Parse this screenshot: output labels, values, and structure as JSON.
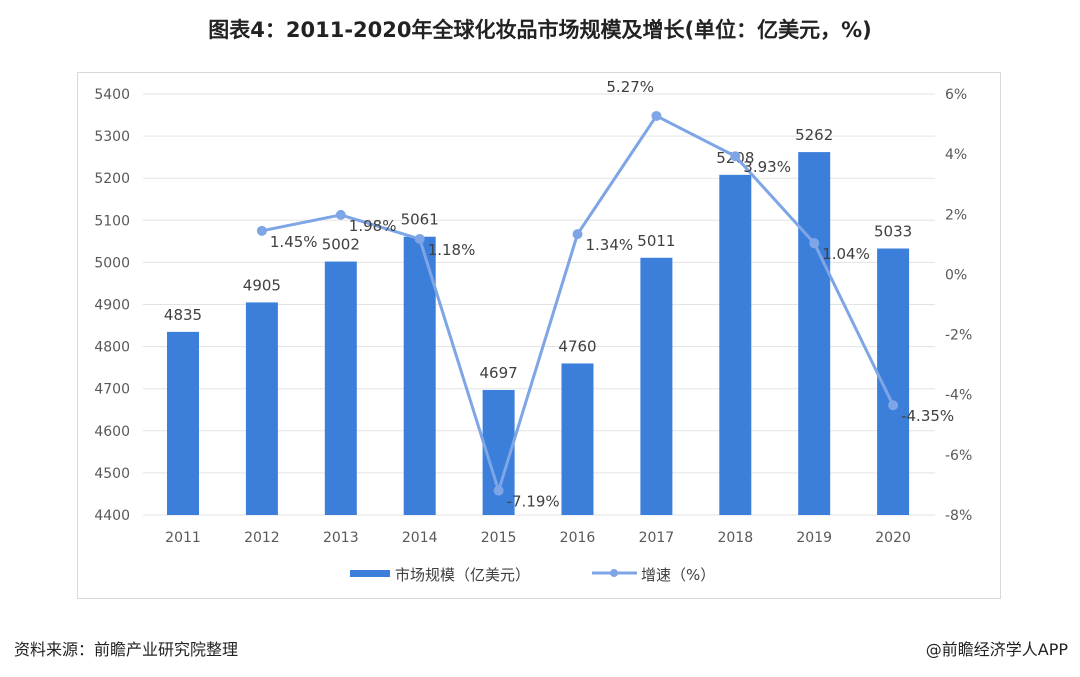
{
  "title": "图表4：2011-2020年全球化妆品市场规模及增长(单位：亿美元，%)",
  "source": "资料来源：前瞻产业研究院整理",
  "credit": "@前瞻经济学人APP",
  "chart_data": {
    "type": "bar+line",
    "title": "图表4：2011-2020年全球化妆品市场规模及增长(单位：亿美元，%)",
    "categories": [
      "2011",
      "2012",
      "2013",
      "2014",
      "2015",
      "2016",
      "2017",
      "2018",
      "2019",
      "2020"
    ],
    "series": [
      {
        "name": "市场规模（亿美元）",
        "type": "bar",
        "axis": "left",
        "color": "#3c7fdb",
        "values": [
          4835,
          4905,
          5002,
          5061,
          4697,
          4760,
          5011,
          5208,
          5262,
          5033
        ]
      },
      {
        "name": "增速（%）",
        "type": "line",
        "axis": "right",
        "color": "#7ea6e6",
        "values": [
          null,
          1.45,
          1.98,
          1.18,
          -7.19,
          1.34,
          5.27,
          3.93,
          1.04,
          -4.35
        ],
        "labels": [
          "",
          "1.45%",
          "1.98%",
          "1.18%",
          "-7.19%",
          "1.34%",
          "5.27%",
          "3.93%",
          "1.04%",
          "-4.35%"
        ]
      }
    ],
    "left_axis": {
      "ylim": [
        4400,
        5400
      ],
      "ticks": [
        "4400",
        "4500",
        "4600",
        "4700",
        "4800",
        "4900",
        "5000",
        "5100",
        "5200",
        "5300",
        "5400"
      ]
    },
    "right_axis": {
      "ylim": [
        -8,
        6
      ],
      "ticks": [
        "-8%",
        "-6%",
        "-4%",
        "-2%",
        "0%",
        "2%",
        "4%",
        "6%"
      ]
    },
    "grid": true,
    "legend": "bottom"
  }
}
